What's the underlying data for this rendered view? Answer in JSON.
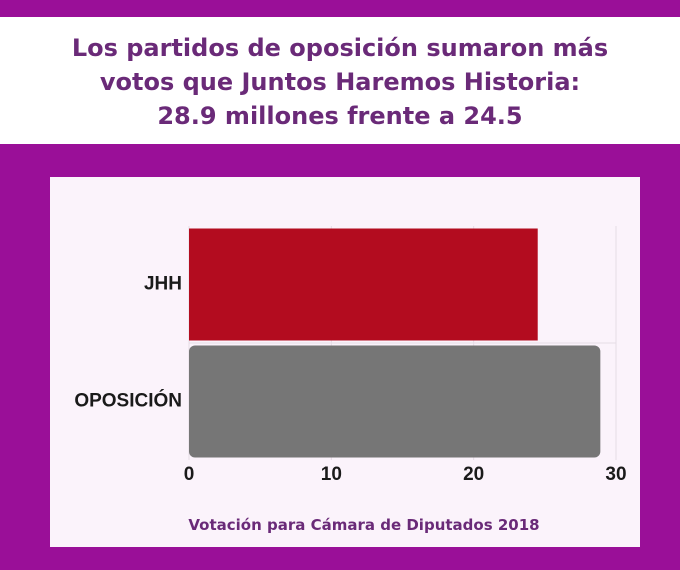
{
  "header": {
    "title_lines": [
      "Los partidos de oposición sumaron más",
      "votos que Juntos Haremos Historia:",
      "28.9 millones frente a 24.5"
    ]
  },
  "colors": {
    "background": "#9a0f98",
    "title_text": "#6a2a78",
    "panel": "#fbf3fb",
    "bar_jhh": "#b30c1f",
    "bar_oposicion": "#767676"
  },
  "chart_data": {
    "type": "bar",
    "orientation": "horizontal",
    "categories": [
      "JHH",
      "OPOSICIÓN"
    ],
    "values": [
      24.5,
      28.9
    ],
    "colors": [
      "#b30c1f",
      "#767676"
    ],
    "xlim": [
      0,
      30
    ],
    "xticks": [
      0,
      10,
      20,
      30
    ],
    "xlabel": "Votación para Cámara de Diputados 2018",
    "grid": true,
    "legend": false
  }
}
